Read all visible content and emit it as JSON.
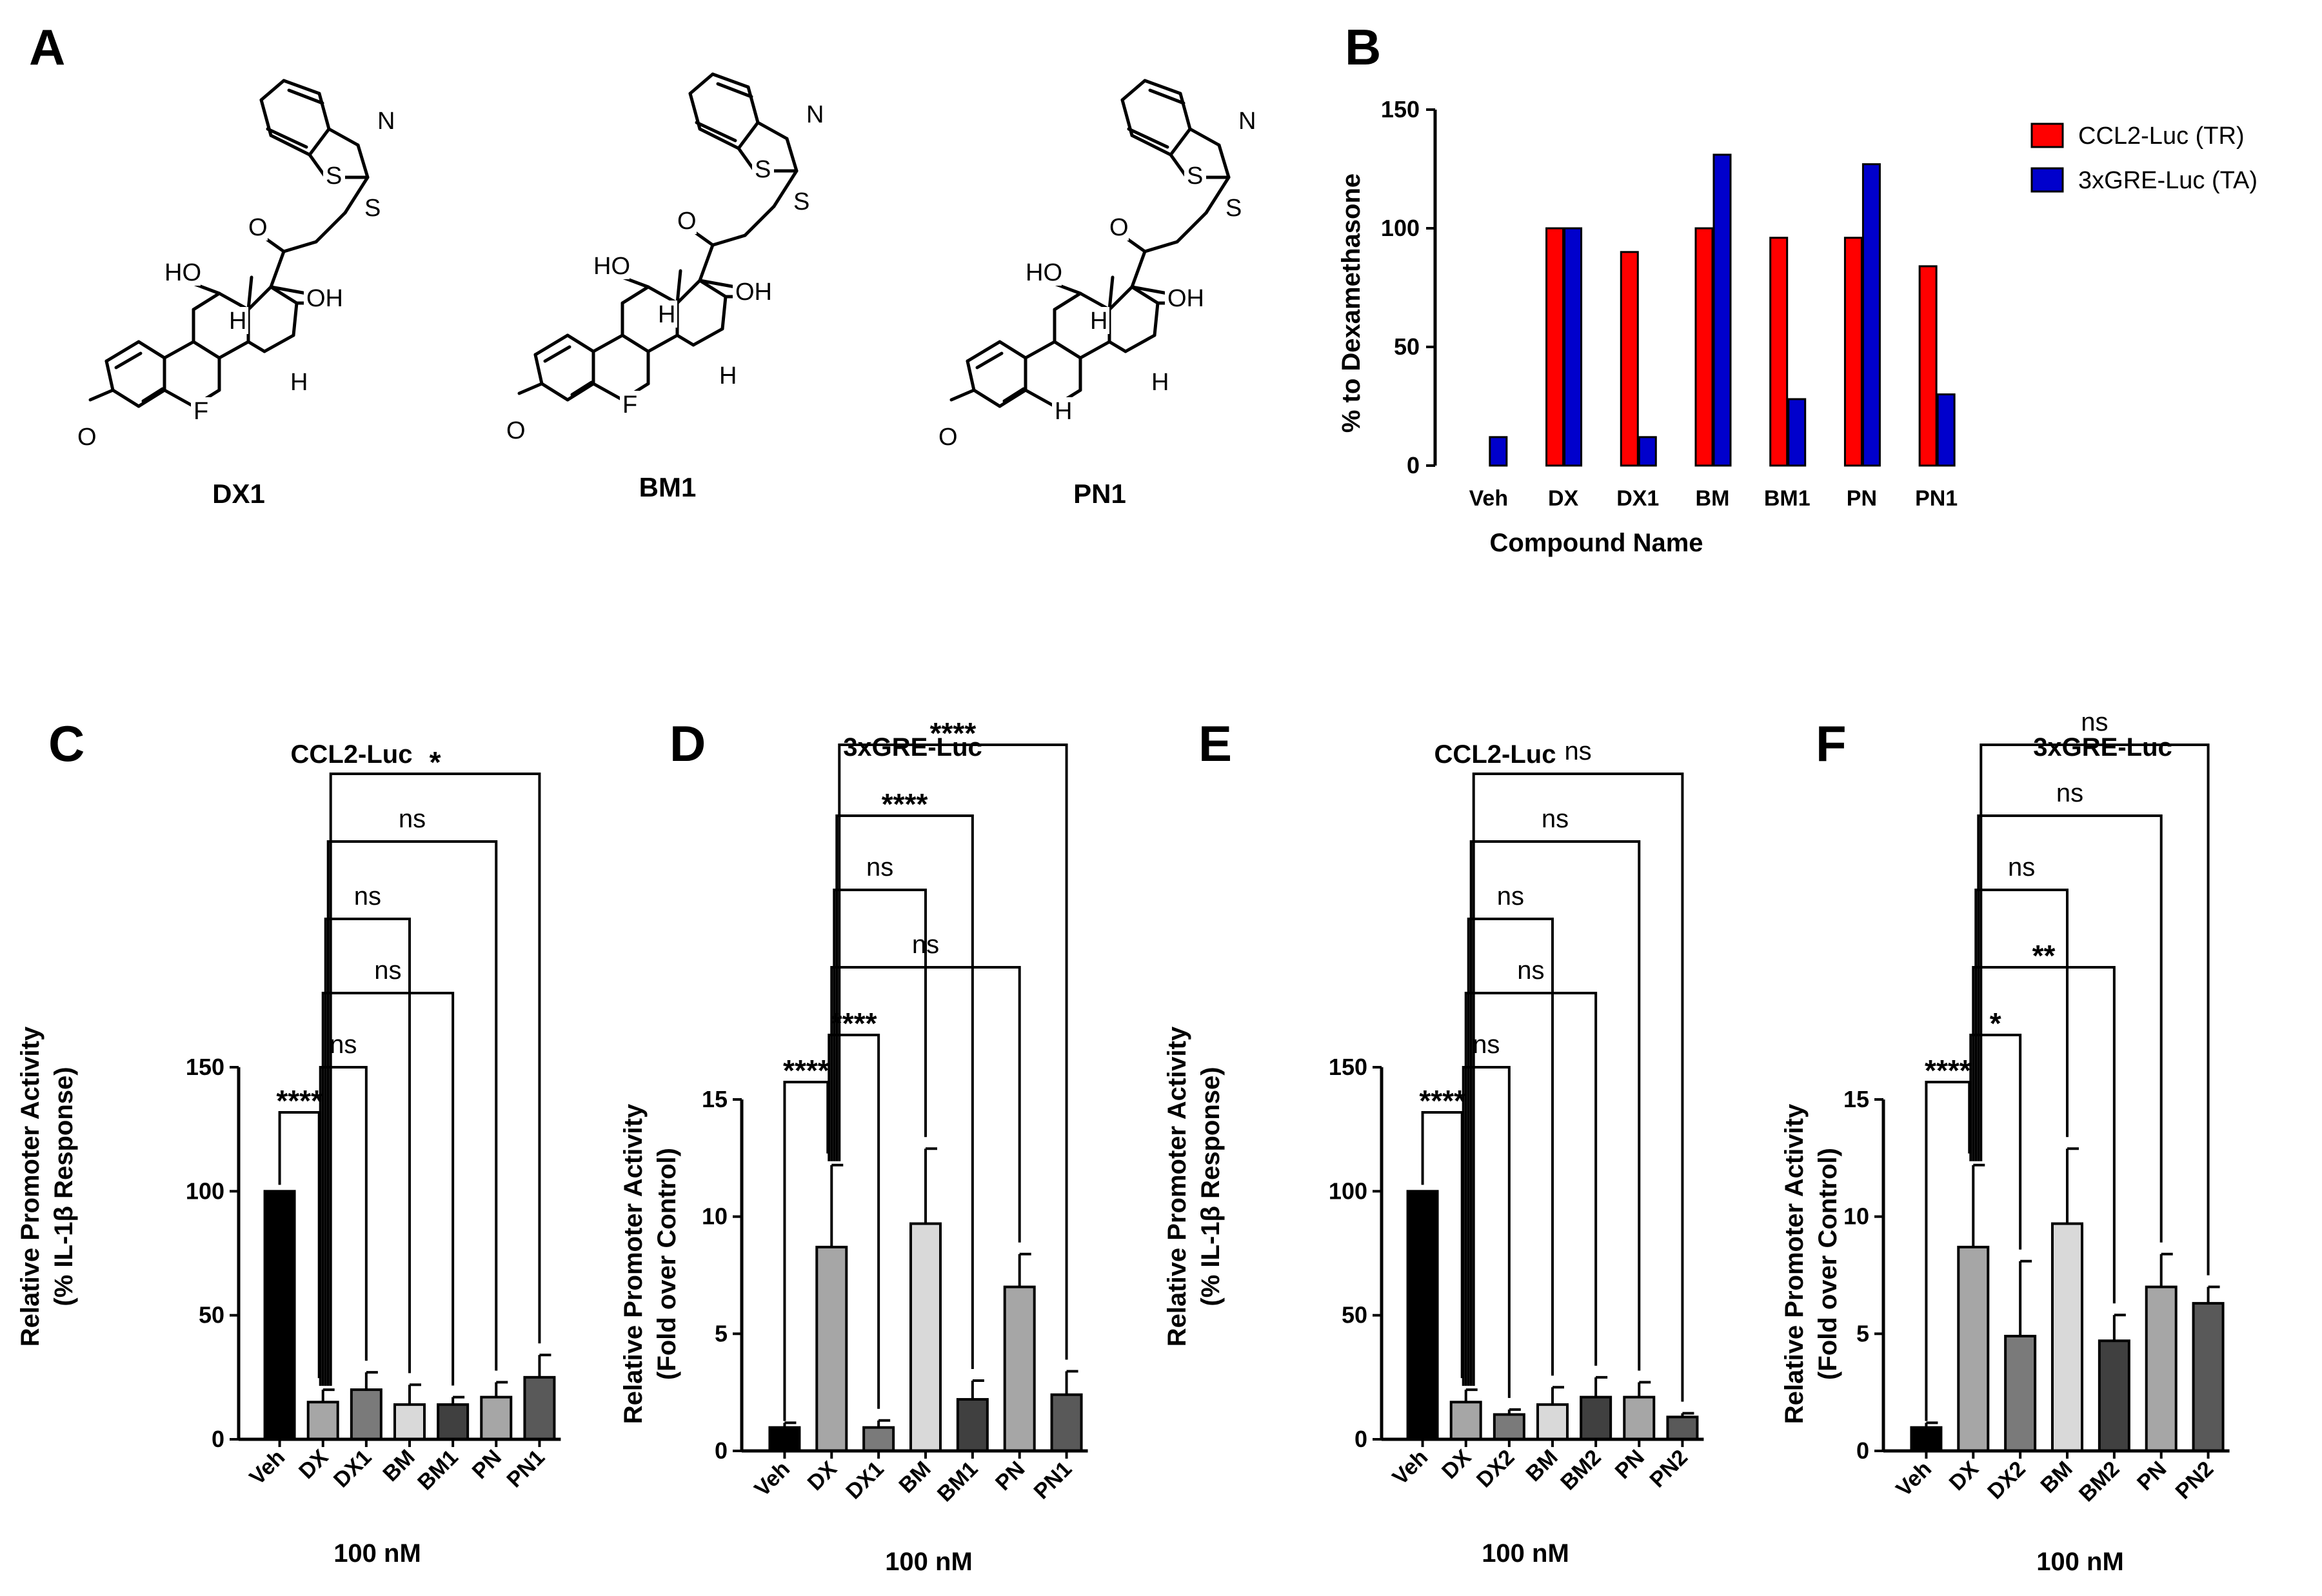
{
  "panel_labels": [
    "A",
    "B",
    "C",
    "D",
    "E",
    "F"
  ],
  "compounds": [
    {
      "name": "DX1",
      "atoms": [
        "S",
        "N",
        "S",
        "O",
        "OH",
        "HO",
        "H",
        "F",
        "H",
        "O"
      ]
    },
    {
      "name": "BM1",
      "atoms": [
        "S",
        "N",
        "S",
        "O",
        "OH",
        "HO",
        "H",
        "F",
        "H",
        "O"
      ]
    },
    {
      "name": "PN1",
      "atoms": [
        "S",
        "N",
        "S",
        "O",
        "OH",
        "HO",
        "H",
        "H",
        "H",
        "O"
      ]
    }
  ],
  "colors": {
    "red": "#ff0000",
    "blue": "#0000cc",
    "black": "#000000",
    "veh": "#000000",
    "dx": "#a6a6a6",
    "dx1": "#7a7a7a",
    "bm": "#d9d9d9",
    "bm1": "#404040",
    "pn": "#a6a6a6",
    "pn1": "#595959"
  },
  "chart_data": [
    {
      "panel": "B",
      "type": "bar",
      "categories": [
        "Veh",
        "DX",
        "DX1",
        "BM",
        "BM1",
        "PN",
        "PN1"
      ],
      "series": [
        {
          "name": "CCL2-Luc (TR)",
          "color": "#ff0000",
          "values": [
            0,
            100,
            90,
            100,
            96,
            96,
            84
          ]
        },
        {
          "name": "3xGRE-Luc (TA)",
          "color": "#0000cc",
          "values": [
            12,
            100,
            12,
            131,
            28,
            127,
            30
          ]
        }
      ],
      "title": "",
      "xlabel": "Compound Name",
      "ylabel": "% to Dexamethasone",
      "ylim": [
        0,
        150
      ],
      "yticks": [
        "0",
        "50",
        "100",
        "150"
      ],
      "legend": "top-right"
    },
    {
      "panel": "C",
      "type": "bar",
      "title": "CCL2-Luc",
      "xlabel": "100 nM",
      "ylabel": [
        "Relative Promoter Activity",
        "(% IL-1β Response)"
      ],
      "ylim": [
        0,
        150
      ],
      "yticks": [
        "0",
        "50",
        "100",
        "150"
      ],
      "categories": [
        "Veh",
        "DX",
        "DX1",
        "BM",
        "BM1",
        "PN",
        "PN1"
      ],
      "values": [
        100,
        15,
        20,
        14,
        14,
        17,
        25
      ],
      "errors": [
        0,
        5,
        7,
        8,
        3,
        6,
        9
      ],
      "annotations": [
        {
          "a": 0,
          "b": 1,
          "label": "****"
        },
        {
          "a": 1,
          "b": 2,
          "label": "ns"
        },
        {
          "a": 1,
          "b": 4,
          "label": "ns"
        },
        {
          "a": 1,
          "b": 3,
          "label": "ns"
        },
        {
          "a": 1,
          "b": 5,
          "label": "ns"
        },
        {
          "a": 1,
          "b": 6,
          "label": "*"
        }
      ]
    },
    {
      "panel": "D",
      "type": "bar",
      "title": "3xGRE-Luc",
      "xlabel": "100 nM",
      "ylabel": [
        "Relative Promoter Activity",
        "(Fold over Control)"
      ],
      "ylim": [
        0,
        15
      ],
      "yticks": [
        "0",
        "5",
        "10",
        "15"
      ],
      "categories": [
        "Veh",
        "DX",
        "DX1",
        "BM",
        "BM1",
        "PN",
        "PN1"
      ],
      "values": [
        1.0,
        8.7,
        1.0,
        9.7,
        2.2,
        7.0,
        2.4
      ],
      "errors": [
        0.2,
        3.5,
        0.3,
        3.2,
        0.8,
        1.4,
        1.0
      ],
      "annotations": [
        {
          "a": 0,
          "b": 1,
          "label": "****"
        },
        {
          "a": 1,
          "b": 2,
          "label": "****"
        },
        {
          "a": 1,
          "b": 5,
          "label": "ns"
        },
        {
          "a": 1,
          "b": 3,
          "label": "ns"
        },
        {
          "a": 1,
          "b": 4,
          "label": "****"
        },
        {
          "a": 1,
          "b": 6,
          "label": "****"
        }
      ]
    },
    {
      "panel": "E",
      "type": "bar",
      "title": "CCL2-Luc",
      "xlabel": "100 nM",
      "ylabel": [
        "Relative Promoter Activity",
        "(% IL-1β Response)"
      ],
      "ylim": [
        0,
        150
      ],
      "yticks": [
        "0",
        "50",
        "100",
        "150"
      ],
      "categories": [
        "Veh",
        "DX",
        "DX2",
        "BM",
        "BM2",
        "PN",
        "PN2"
      ],
      "values": [
        100,
        15,
        10,
        14,
        17,
        17,
        9
      ],
      "errors": [
        0,
        5,
        2,
        7,
        8,
        6,
        1.5
      ],
      "annotations": [
        {
          "a": 0,
          "b": 1,
          "label": "****"
        },
        {
          "a": 1,
          "b": 2,
          "label": "ns"
        },
        {
          "a": 1,
          "b": 4,
          "label": "ns"
        },
        {
          "a": 1,
          "b": 3,
          "label": "ns"
        },
        {
          "a": 1,
          "b": 5,
          "label": "ns"
        },
        {
          "a": 1,
          "b": 6,
          "label": "ns"
        }
      ]
    },
    {
      "panel": "F",
      "type": "bar",
      "title": "3xGRE-Luc",
      "xlabel": "100 nM",
      "ylabel": [
        "Relative Promoter Activity",
        "(Fold over Control)"
      ],
      "ylim": [
        0,
        15
      ],
      "yticks": [
        "0",
        "5",
        "10",
        "15"
      ],
      "categories": [
        "Veh",
        "DX",
        "DX2",
        "BM",
        "BM2",
        "PN",
        "PN2"
      ],
      "values": [
        1.0,
        8.7,
        4.9,
        9.7,
        4.7,
        7.0,
        6.3
      ],
      "errors": [
        0.2,
        3.5,
        3.2,
        3.2,
        1.1,
        1.4,
        0.7
      ],
      "annotations": [
        {
          "a": 0,
          "b": 1,
          "label": "****"
        },
        {
          "a": 1,
          "b": 2,
          "label": "*"
        },
        {
          "a": 1,
          "b": 4,
          "label": "**"
        },
        {
          "a": 1,
          "b": 3,
          "label": "ns"
        },
        {
          "a": 1,
          "b": 5,
          "label": "ns"
        },
        {
          "a": 1,
          "b": 6,
          "label": "ns"
        }
      ]
    }
  ]
}
